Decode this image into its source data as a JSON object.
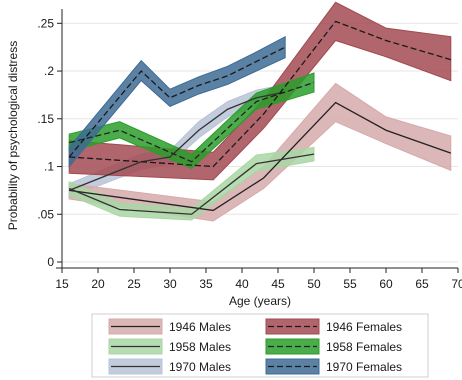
{
  "chart_data": {
    "type": "line",
    "xlabel": "Age (years)",
    "ylabel": "Probability of psychological distress",
    "xlim": [
      15,
      70
    ],
    "ylim": [
      0,
      0.265
    ],
    "x_ticks": [
      15,
      20,
      25,
      30,
      35,
      40,
      45,
      50,
      55,
      60,
      65,
      70
    ],
    "y_ticks": [
      {
        "value": 0,
        "label": "0"
      },
      {
        "value": 0.05,
        "label": ".05"
      },
      {
        "value": 0.1,
        "label": ".1"
      },
      {
        "value": 0.15,
        "label": ".15"
      },
      {
        "value": 0.2,
        "label": ".2"
      },
      {
        "value": 0.25,
        "label": ".25"
      }
    ],
    "grid": true,
    "legend_position": "bottom",
    "series": [
      {
        "name": "1946 Males",
        "line": "solid",
        "band_color": "#d6aaab",
        "line_color": "#222222",
        "x": [
          16,
          36,
          43,
          53,
          60,
          69
        ],
        "y": [
          0.075,
          0.054,
          0.088,
          0.167,
          0.138,
          0.114
        ],
        "lower": [
          0.066,
          0.043,
          0.077,
          0.147,
          0.124,
          0.096
        ],
        "upper": [
          0.082,
          0.063,
          0.1,
          0.187,
          0.152,
          0.132
        ]
      },
      {
        "name": "1946 Females",
        "line": "dashed",
        "band_color": "#a34a52",
        "line_color": "#1a1a1a",
        "x": [
          16,
          36,
          43,
          53,
          60,
          69
        ],
        "y": [
          0.11,
          0.1,
          0.155,
          0.252,
          0.232,
          0.212
        ],
        "lower": [
          0.093,
          0.086,
          0.14,
          0.232,
          0.215,
          0.19
        ],
        "upper": [
          0.127,
          0.115,
          0.17,
          0.272,
          0.245,
          0.236
        ]
      },
      {
        "name": "1958 Males",
        "line": "solid",
        "band_color": "#a9d6a4",
        "line_color": "#333333",
        "x": [
          16,
          23,
          33,
          42,
          50
        ],
        "y": [
          0.077,
          0.055,
          0.05,
          0.103,
          0.113
        ],
        "lower": [
          0.07,
          0.048,
          0.044,
          0.095,
          0.106
        ],
        "upper": [
          0.084,
          0.062,
          0.056,
          0.112,
          0.12
        ]
      },
      {
        "name": "1958 Females",
        "line": "dashed",
        "band_color": "#2a9d2a",
        "line_color": "#222222",
        "x": [
          16,
          23,
          33,
          42,
          50
        ],
        "y": [
          0.125,
          0.138,
          0.105,
          0.168,
          0.188
        ],
        "lower": [
          0.116,
          0.13,
          0.098,
          0.16,
          0.178
        ],
        "upper": [
          0.134,
          0.147,
          0.113,
          0.177,
          0.198
        ]
      },
      {
        "name": "1970 Males",
        "line": "solid",
        "band_color": "#b9c3d7",
        "line_color": "#333333",
        "x": [
          16,
          26,
          30,
          34,
          38,
          42,
          46
        ],
        "y": [
          0.075,
          0.105,
          0.11,
          0.138,
          0.16,
          0.172,
          0.178
        ],
        "lower": [
          0.068,
          0.097,
          0.103,
          0.13,
          0.152,
          0.164,
          0.17
        ],
        "upper": [
          0.082,
          0.113,
          0.117,
          0.147,
          0.168,
          0.18,
          0.186
        ]
      },
      {
        "name": "1970 Females",
        "line": "dashed",
        "band_color": "#3e6b94",
        "line_color": "#1a1a1a",
        "x": [
          16,
          26,
          30,
          34,
          38,
          42,
          46
        ],
        "y": [
          0.11,
          0.2,
          0.172,
          0.185,
          0.195,
          0.21,
          0.225
        ],
        "lower": [
          0.1,
          0.19,
          0.163,
          0.176,
          0.186,
          0.2,
          0.214
        ],
        "upper": [
          0.12,
          0.211,
          0.181,
          0.194,
          0.205,
          0.22,
          0.236
        ]
      }
    ],
    "draw_order": [
      "1970 Males",
      "1946 Females",
      "1946 Males",
      "1958 Males",
      "1958 Females",
      "1970 Females"
    ],
    "legend_layout": [
      [
        "1946 Males",
        "1946 Females"
      ],
      [
        "1958 Males",
        "1958 Females"
      ],
      [
        "1970 Males",
        "1970 Females"
      ]
    ]
  }
}
